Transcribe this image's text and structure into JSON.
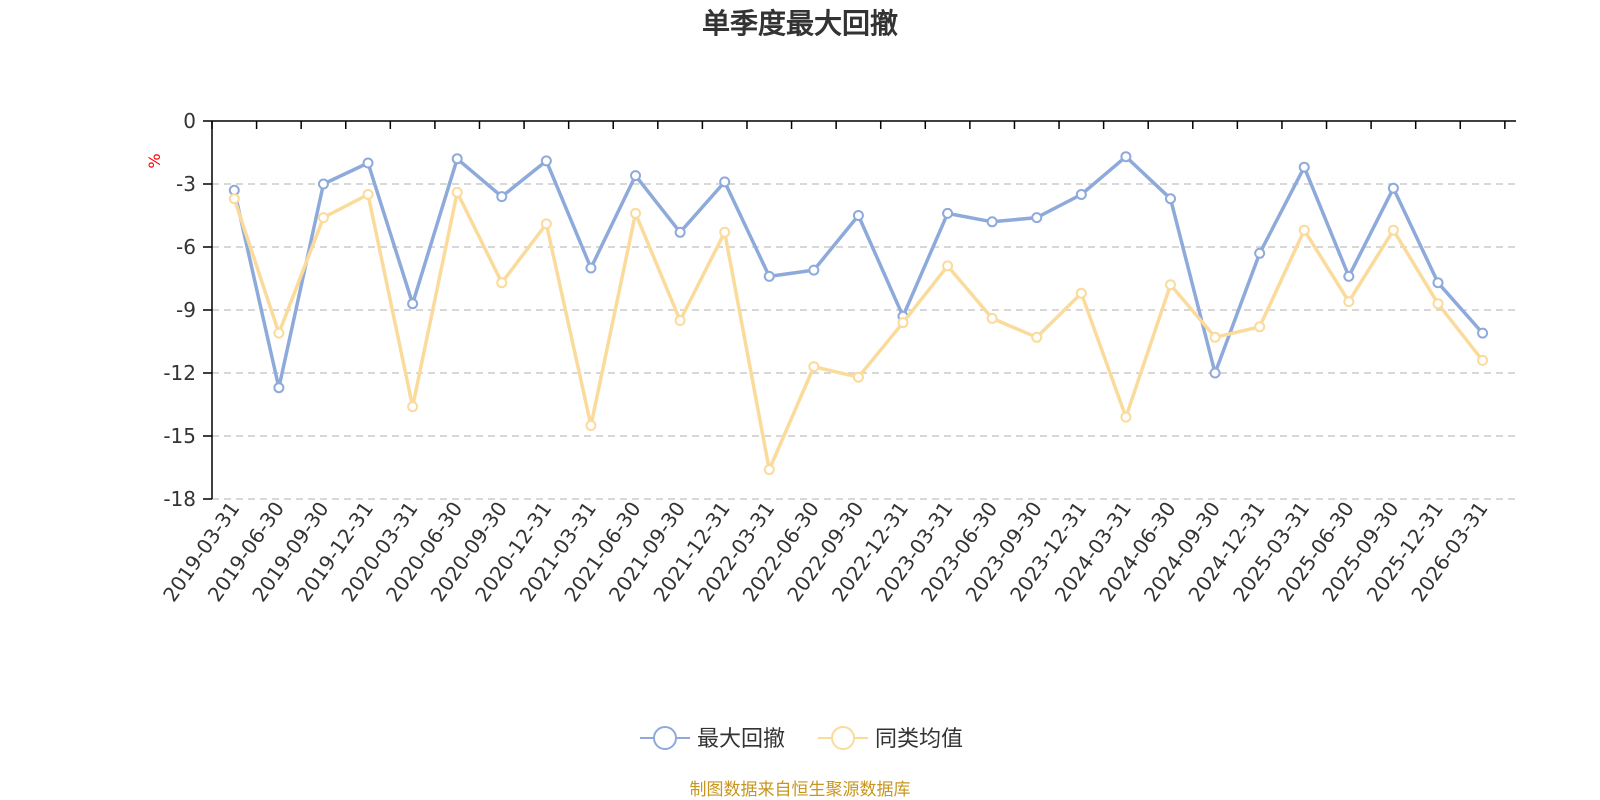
{
  "chart_data": {
    "type": "line",
    "title": "单季度最大回撤",
    "ylabel": "%",
    "xlabel": "",
    "ylim": [
      -18,
      0
    ],
    "yticks": [
      0,
      -3,
      -6,
      -9,
      -12,
      -15,
      -18
    ],
    "grid": true,
    "categories": [
      "2019-03-31",
      "2019-06-30",
      "2019-09-30",
      "2019-12-31",
      "2020-03-31",
      "2020-06-30",
      "2020-09-30",
      "2020-12-31",
      "2021-03-31",
      "2021-06-30",
      "2021-09-30",
      "2021-12-31",
      "2022-03-31",
      "2022-06-30",
      "2022-09-30",
      "2022-12-31",
      "2023-03-31",
      "2023-06-30",
      "2023-09-30",
      "2023-12-31",
      "2024-03-31",
      "2024-06-30",
      "2024-09-30",
      "2024-12-31",
      "2025-03-31",
      "2025-06-30",
      "2025-09-30",
      "2025-12-31",
      "2026-03-31"
    ],
    "series": [
      {
        "name": "最大回撤",
        "color": "#8eaadb",
        "values": [
          -3.3,
          -12.7,
          -3.0,
          -2.0,
          -8.7,
          -1.8,
          -3.6,
          -1.9,
          -7.0,
          -2.6,
          -5.3,
          -2.9,
          -7.4,
          -7.1,
          -4.5,
          -9.3,
          -4.4,
          -4.8,
          -4.6,
          -3.5,
          -1.7,
          -3.7,
          -12.0,
          -6.3,
          -2.2,
          -7.4,
          -3.2,
          -7.7,
          -10.1
        ]
      },
      {
        "name": "同类均值",
        "color": "#fbdb9b",
        "values": [
          -3.7,
          -10.1,
          -4.6,
          -3.5,
          -13.6,
          -3.4,
          -7.7,
          -4.9,
          -14.5,
          -4.4,
          -9.5,
          -5.3,
          -16.6,
          -11.7,
          -12.2,
          -9.6,
          -6.9,
          -9.4,
          -10.3,
          -8.2,
          -14.1,
          -7.8,
          -10.3,
          -9.8,
          -5.2,
          -8.6,
          -5.2,
          -8.7,
          -11.4
        ]
      }
    ],
    "legend_position": "bottom-center"
  },
  "source_text": "制图数据来自恒生聚源数据库",
  "colors": {
    "axis": "#000000",
    "grid": "#cccccc",
    "text": "#333333",
    "unit": "#ff0000",
    "source": "#c8961e"
  }
}
